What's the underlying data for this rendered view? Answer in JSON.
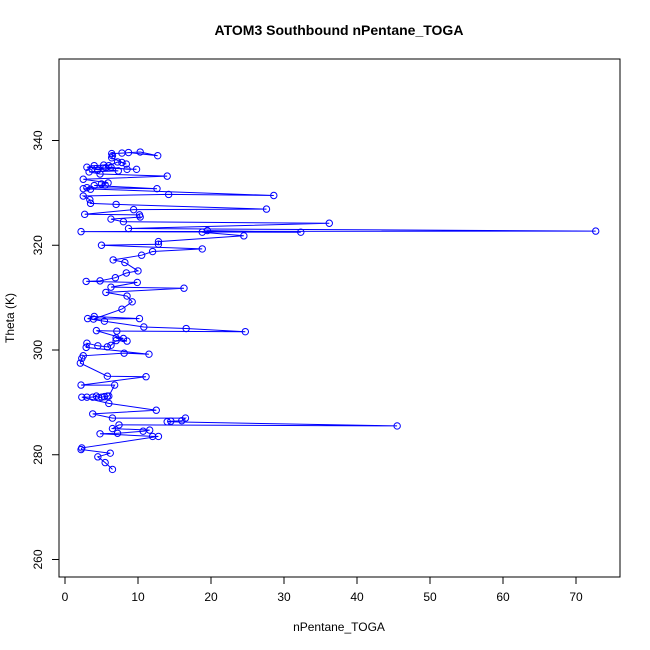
{
  "chart_data": {
    "type": "scatter",
    "title": "ATOM3 Southbound nPentane_TOGA",
    "xlabel": "nPentane_TOGA",
    "ylabel": "Theta (K)",
    "xlim": [
      0,
      75
    ],
    "ylim": [
      255,
      358
    ],
    "x_ticks": [
      0,
      10,
      20,
      30,
      40,
      50,
      60,
      70
    ],
    "y_ticks": [
      260,
      280,
      300,
      320,
      340
    ],
    "x_tick_labels": [
      "0",
      "10",
      "20",
      "30",
      "40",
      "50",
      "60",
      "70"
    ],
    "y_tick_labels": [
      "260",
      "280",
      "300",
      "320",
      "340"
    ],
    "grid": false,
    "legend": "none",
    "series_color": "#0000ff",
    "marker": "open-circle",
    "connected": true,
    "points": [
      {
        "x": 6.5,
        "y": 277.2
      },
      {
        "x": 5.5,
        "y": 278.5
      },
      {
        "x": 4.5,
        "y": 279.6
      },
      {
        "x": 6.2,
        "y": 280.3
      },
      {
        "x": 2.2,
        "y": 281.0
      },
      {
        "x": 2.3,
        "y": 281.3
      },
      {
        "x": 12.8,
        "y": 283.5
      },
      {
        "x": 12.0,
        "y": 283.5
      },
      {
        "x": 4.8,
        "y": 284.0
      },
      {
        "x": 7.2,
        "y": 284.1
      },
      {
        "x": 10.7,
        "y": 284.5
      },
      {
        "x": 11.6,
        "y": 284.7
      },
      {
        "x": 6.5,
        "y": 285.0
      },
      {
        "x": 7.4,
        "y": 285.7
      },
      {
        "x": 45.5,
        "y": 285.5
      },
      {
        "x": 14.0,
        "y": 286.3
      },
      {
        "x": 14.5,
        "y": 286.4
      },
      {
        "x": 16.0,
        "y": 286.5
      },
      {
        "x": 16.5,
        "y": 287.0
      },
      {
        "x": 6.5,
        "y": 287.0
      },
      {
        "x": 3.8,
        "y": 287.8
      },
      {
        "x": 12.5,
        "y": 288.5
      },
      {
        "x": 6.0,
        "y": 289.8
      },
      {
        "x": 2.3,
        "y": 291.0
      },
      {
        "x": 3.0,
        "y": 291.0
      },
      {
        "x": 3.8,
        "y": 291.0
      },
      {
        "x": 4.3,
        "y": 291.2
      },
      {
        "x": 4.6,
        "y": 290.9
      },
      {
        "x": 5.0,
        "y": 291.0
      },
      {
        "x": 5.4,
        "y": 291.1
      },
      {
        "x": 5.8,
        "y": 291.2
      },
      {
        "x": 6.0,
        "y": 291.2
      },
      {
        "x": 6.8,
        "y": 293.3
      },
      {
        "x": 2.2,
        "y": 293.3
      },
      {
        "x": 11.1,
        "y": 294.9
      },
      {
        "x": 5.8,
        "y": 295.0
      },
      {
        "x": 2.1,
        "y": 297.5
      },
      {
        "x": 2.3,
        "y": 298.4
      },
      {
        "x": 2.5,
        "y": 298.9
      },
      {
        "x": 8.1,
        "y": 299.4
      },
      {
        "x": 11.5,
        "y": 299.2
      },
      {
        "x": 2.9,
        "y": 300.5
      },
      {
        "x": 3.0,
        "y": 301.3
      },
      {
        "x": 4.5,
        "y": 300.8
      },
      {
        "x": 5.8,
        "y": 300.6
      },
      {
        "x": 6.3,
        "y": 300.9
      },
      {
        "x": 7.0,
        "y": 301.8
      },
      {
        "x": 8.5,
        "y": 301.7
      },
      {
        "x": 7.0,
        "y": 302.3
      },
      {
        "x": 8.0,
        "y": 302.2
      },
      {
        "x": 4.3,
        "y": 303.7
      },
      {
        "x": 7.1,
        "y": 303.6
      },
      {
        "x": 24.7,
        "y": 303.5
      },
      {
        "x": 16.6,
        "y": 304.1
      },
      {
        "x": 10.8,
        "y": 304.4
      },
      {
        "x": 5.4,
        "y": 305.5
      },
      {
        "x": 3.1,
        "y": 306.0
      },
      {
        "x": 4.0,
        "y": 306.4
      },
      {
        "x": 10.2,
        "y": 306.0
      },
      {
        "x": 3.9,
        "y": 305.9
      },
      {
        "x": 7.8,
        "y": 307.8
      },
      {
        "x": 9.2,
        "y": 309.2
      },
      {
        "x": 8.5,
        "y": 310.3
      },
      {
        "x": 5.6,
        "y": 311.0
      },
      {
        "x": 16.3,
        "y": 311.8
      },
      {
        "x": 6.3,
        "y": 312.0
      },
      {
        "x": 9.9,
        "y": 312.9
      },
      {
        "x": 2.9,
        "y": 313.1
      },
      {
        "x": 4.8,
        "y": 313.2
      },
      {
        "x": 6.9,
        "y": 313.8
      },
      {
        "x": 8.4,
        "y": 314.7
      },
      {
        "x": 10.0,
        "y": 315.1
      },
      {
        "x": 8.2,
        "y": 316.7
      },
      {
        "x": 6.6,
        "y": 317.2
      },
      {
        "x": 10.5,
        "y": 318.1
      },
      {
        "x": 12.0,
        "y": 318.8
      },
      {
        "x": 18.8,
        "y": 319.3
      },
      {
        "x": 5.0,
        "y": 320.0
      },
      {
        "x": 12.8,
        "y": 320.2
      },
      {
        "x": 12.8,
        "y": 320.7
      },
      {
        "x": 24.5,
        "y": 321.8
      },
      {
        "x": 18.8,
        "y": 322.5
      },
      {
        "x": 19.5,
        "y": 322.8
      },
      {
        "x": 32.3,
        "y": 322.5
      },
      {
        "x": 2.2,
        "y": 322.6
      },
      {
        "x": 72.7,
        "y": 322.7
      },
      {
        "x": 8.7,
        "y": 323.2
      },
      {
        "x": 36.2,
        "y": 324.2
      },
      {
        "x": 8.0,
        "y": 324.5
      },
      {
        "x": 6.3,
        "y": 325.0
      },
      {
        "x": 10.3,
        "y": 325.4
      },
      {
        "x": 10.2,
        "y": 325.8
      },
      {
        "x": 2.7,
        "y": 325.9
      },
      {
        "x": 9.4,
        "y": 326.8
      },
      {
        "x": 27.6,
        "y": 326.9
      },
      {
        "x": 7.0,
        "y": 327.8
      },
      {
        "x": 3.5,
        "y": 328.0
      },
      {
        "x": 3.4,
        "y": 328.7
      },
      {
        "x": 2.5,
        "y": 329.4
      },
      {
        "x": 14.2,
        "y": 329.7
      },
      {
        "x": 28.6,
        "y": 329.5
      },
      {
        "x": 2.5,
        "y": 330.8
      },
      {
        "x": 3.5,
        "y": 330.7
      },
      {
        "x": 3.0,
        "y": 331.0
      },
      {
        "x": 12.6,
        "y": 330.8
      },
      {
        "x": 4.0,
        "y": 331.4
      },
      {
        "x": 5.5,
        "y": 331.5
      },
      {
        "x": 5.0,
        "y": 331.7
      },
      {
        "x": 5.9,
        "y": 331.9
      },
      {
        "x": 2.5,
        "y": 332.6
      },
      {
        "x": 14.0,
        "y": 333.2
      },
      {
        "x": 4.8,
        "y": 333.6
      },
      {
        "x": 3.3,
        "y": 334.0
      },
      {
        "x": 7.3,
        "y": 334.2
      },
      {
        "x": 3.7,
        "y": 334.6
      },
      {
        "x": 4.5,
        "y": 334.4
      },
      {
        "x": 5.2,
        "y": 334.7
      },
      {
        "x": 5.6,
        "y": 334.8
      },
      {
        "x": 6.3,
        "y": 334.9
      },
      {
        "x": 8.5,
        "y": 334.5
      },
      {
        "x": 9.8,
        "y": 334.5
      },
      {
        "x": 3.0,
        "y": 334.9
      },
      {
        "x": 4.0,
        "y": 335.2
      },
      {
        "x": 5.3,
        "y": 335.3
      },
      {
        "x": 6.0,
        "y": 335.2
      },
      {
        "x": 7.2,
        "y": 335.9
      },
      {
        "x": 7.8,
        "y": 335.8
      },
      {
        "x": 8.4,
        "y": 335.5
      },
      {
        "x": 6.4,
        "y": 336.7
      },
      {
        "x": 6.5,
        "y": 337.1
      },
      {
        "x": 6.4,
        "y": 337.5
      },
      {
        "x": 7.8,
        "y": 337.6
      },
      {
        "x": 10.3,
        "y": 337.8
      },
      {
        "x": 12.7,
        "y": 337.1
      },
      {
        "x": 8.7,
        "y": 337.7
      }
    ]
  }
}
